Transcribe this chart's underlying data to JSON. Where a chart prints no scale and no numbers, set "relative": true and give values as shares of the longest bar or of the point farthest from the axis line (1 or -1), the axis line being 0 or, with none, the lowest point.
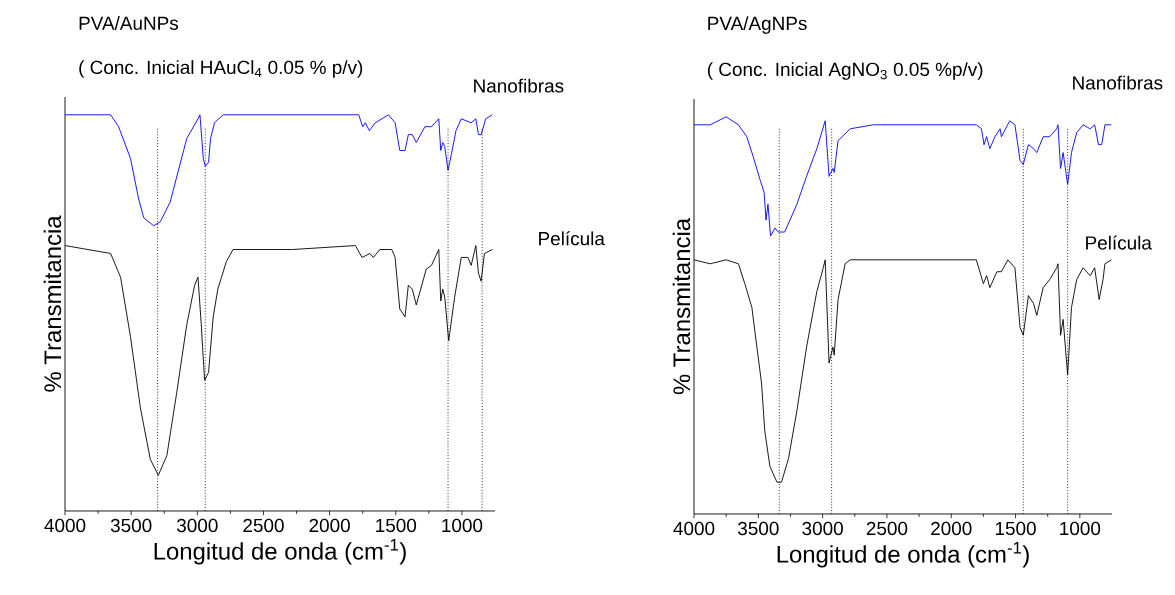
{
  "chart_data": [
    {
      "type": "line",
      "title": "PVA/AuNPs",
      "subtitle": "( Conc. Inicial HAuCl$_{4}$ 0.05 % p/v)",
      "xlabel": "Longitud de onda (cm$^{-1}$)",
      "ylabel": "% Transmitancia",
      "relative": true,
      "xlim": [
        4000,
        750
      ],
      "xticks": [
        4000,
        3500,
        3000,
        2500,
        2000,
        1500,
        1000
      ],
      "series": [
        {
          "name": "Nanofibras",
          "color": "#0000ff",
          "x": [
            4000,
            3655,
            3595,
            3505,
            3445,
            3405,
            3330,
            3280,
            3205,
            3080,
            2995,
            2980,
            2955,
            2940,
            2915,
            2900,
            2870,
            2805,
            2280,
            1780,
            1750,
            1730,
            1700,
            1655,
            1555,
            1505,
            1470,
            1430,
            1405,
            1375,
            1345,
            1280,
            1230,
            1175,
            1160,
            1145,
            1130,
            1105,
            1080,
            1045,
            1005,
            930,
            895,
            875,
            855,
            820,
            770
          ],
          "values": [
            1.0,
            1.0,
            0.97,
            0.89,
            0.79,
            0.74,
            0.72,
            0.73,
            0.78,
            0.94,
            0.99,
            1.0,
            0.89,
            0.87,
            0.88,
            0.94,
            0.98,
            1.0,
            1.0,
            1.0,
            0.97,
            0.98,
            0.96,
            0.98,
            1.0,
            0.98,
            0.91,
            0.91,
            0.95,
            0.95,
            0.93,
            0.97,
            0.97,
            0.99,
            0.91,
            0.93,
            0.92,
            0.86,
            0.9,
            0.96,
            0.99,
            0.98,
            0.99,
            0.95,
            0.95,
            0.99,
            1.0
          ]
        },
        {
          "name": "Película",
          "color": "#000000",
          "x": [
            4000,
            3655,
            3580,
            3505,
            3430,
            3355,
            3295,
            3230,
            3155,
            3080,
            3020,
            2995,
            2970,
            2945,
            2915,
            2880,
            2845,
            2780,
            2730,
            2630,
            2280,
            1805,
            1755,
            1695,
            1670,
            1620,
            1530,
            1505,
            1470,
            1430,
            1405,
            1375,
            1345,
            1270,
            1230,
            1175,
            1160,
            1145,
            1130,
            1100,
            1055,
            1005,
            955,
            930,
            895,
            875,
            855,
            830,
            770
          ],
          "values": [
            0.67,
            0.65,
            0.59,
            0.44,
            0.26,
            0.13,
            0.09,
            0.14,
            0.3,
            0.47,
            0.57,
            0.59,
            0.47,
            0.33,
            0.35,
            0.49,
            0.56,
            0.63,
            0.66,
            0.66,
            0.66,
            0.67,
            0.64,
            0.65,
            0.64,
            0.66,
            0.66,
            0.64,
            0.51,
            0.49,
            0.57,
            0.56,
            0.52,
            0.61,
            0.62,
            0.66,
            0.53,
            0.56,
            0.54,
            0.43,
            0.54,
            0.64,
            0.64,
            0.62,
            0.67,
            0.6,
            0.58,
            0.65,
            0.66
          ]
        }
      ],
      "ref_lines": [
        {
          "axis": "x",
          "value": 3300,
          "line_style": "dotted",
          "color": "#000000"
        },
        {
          "axis": "x",
          "value": 2940,
          "line_style": "dotted",
          "color": "#000000"
        },
        {
          "axis": "x",
          "value": 1105,
          "line_style": "dotted",
          "color": "#000000"
        },
        {
          "axis": "x",
          "value": 847,
          "line_style": "dotted",
          "color": "#000000"
        }
      ]
    },
    {
      "type": "line",
      "title": "PVA/AgNPs",
      "subtitle": "( Conc. Inicial AgNO$_{3}$ 0.05 %p/v)",
      "xlabel": "Longitud de onda (cm$^{-1}$)",
      "ylabel": "% Transmitancia",
      "relative": true,
      "xlim": [
        4000,
        750
      ],
      "xticks": [
        4000,
        3500,
        3000,
        2500,
        2000,
        1500,
        1000
      ],
      "series": [
        {
          "name": "Nanofibras",
          "color": "#0000ff",
          "x": [
            4000,
            3875,
            3750,
            3655,
            3590,
            3540,
            3485,
            3455,
            3440,
            3425,
            3405,
            3370,
            3345,
            3295,
            3200,
            3125,
            3045,
            2980,
            2950,
            2920,
            2910,
            2880,
            2785,
            2605,
            2090,
            1805,
            1765,
            1745,
            1725,
            1700,
            1660,
            1620,
            1610,
            1545,
            1505,
            1465,
            1440,
            1400,
            1360,
            1335,
            1285,
            1235,
            1180,
            1170,
            1150,
            1130,
            1095,
            1065,
            1025,
            975,
            920,
            885,
            855,
            830,
            805,
            755
          ],
          "values": [
            0.98,
            0.98,
            1.0,
            0.98,
            0.95,
            0.9,
            0.84,
            0.81,
            0.74,
            0.78,
            0.7,
            0.72,
            0.71,
            0.71,
            0.78,
            0.85,
            0.92,
            0.99,
            0.85,
            0.87,
            0.86,
            0.94,
            0.97,
            0.98,
            0.98,
            0.98,
            0.97,
            0.93,
            0.95,
            0.92,
            0.95,
            0.97,
            0.95,
            0.99,
            0.98,
            0.89,
            0.88,
            0.93,
            0.92,
            0.91,
            0.95,
            0.95,
            0.97,
            0.98,
            0.87,
            0.91,
            0.83,
            0.91,
            0.96,
            0.98,
            0.97,
            0.98,
            0.93,
            0.93,
            0.98,
            0.98
          ]
        },
        {
          "name": "Película",
          "color": "#000000",
          "x": [
            4000,
            3875,
            3750,
            3655,
            3605,
            3550,
            3515,
            3475,
            3450,
            3410,
            3355,
            3320,
            3265,
            3200,
            3125,
            3045,
            2995,
            2980,
            2950,
            2920,
            2910,
            2880,
            2825,
            2785,
            2475,
            1805,
            1750,
            1725,
            1700,
            1645,
            1610,
            1560,
            1505,
            1465,
            1440,
            1400,
            1360,
            1335,
            1285,
            1235,
            1180,
            1170,
            1150,
            1130,
            1095,
            1065,
            1025,
            975,
            920,
            885,
            850,
            820,
            805,
            755
          ],
          "values": [
            0.64,
            0.63,
            0.64,
            0.63,
            0.58,
            0.52,
            0.43,
            0.33,
            0.21,
            0.12,
            0.08,
            0.08,
            0.14,
            0.26,
            0.42,
            0.56,
            0.62,
            0.64,
            0.38,
            0.42,
            0.4,
            0.54,
            0.63,
            0.64,
            0.64,
            0.64,
            0.58,
            0.6,
            0.57,
            0.61,
            0.61,
            0.64,
            0.62,
            0.47,
            0.45,
            0.55,
            0.53,
            0.5,
            0.57,
            0.59,
            0.62,
            0.63,
            0.45,
            0.49,
            0.35,
            0.52,
            0.59,
            0.62,
            0.6,
            0.62,
            0.54,
            0.59,
            0.63,
            0.64
          ]
        }
      ],
      "ref_lines": [
        {
          "axis": "x",
          "value": 3337,
          "line_style": "dotted",
          "color": "#000000"
        },
        {
          "axis": "x",
          "value": 2930,
          "line_style": "dotted",
          "color": "#000000"
        },
        {
          "axis": "x",
          "value": 1440,
          "line_style": "dotted",
          "color": "#000000"
        },
        {
          "axis": "x",
          "value": 1095,
          "line_style": "dotted",
          "color": "#000000"
        }
      ]
    }
  ]
}
